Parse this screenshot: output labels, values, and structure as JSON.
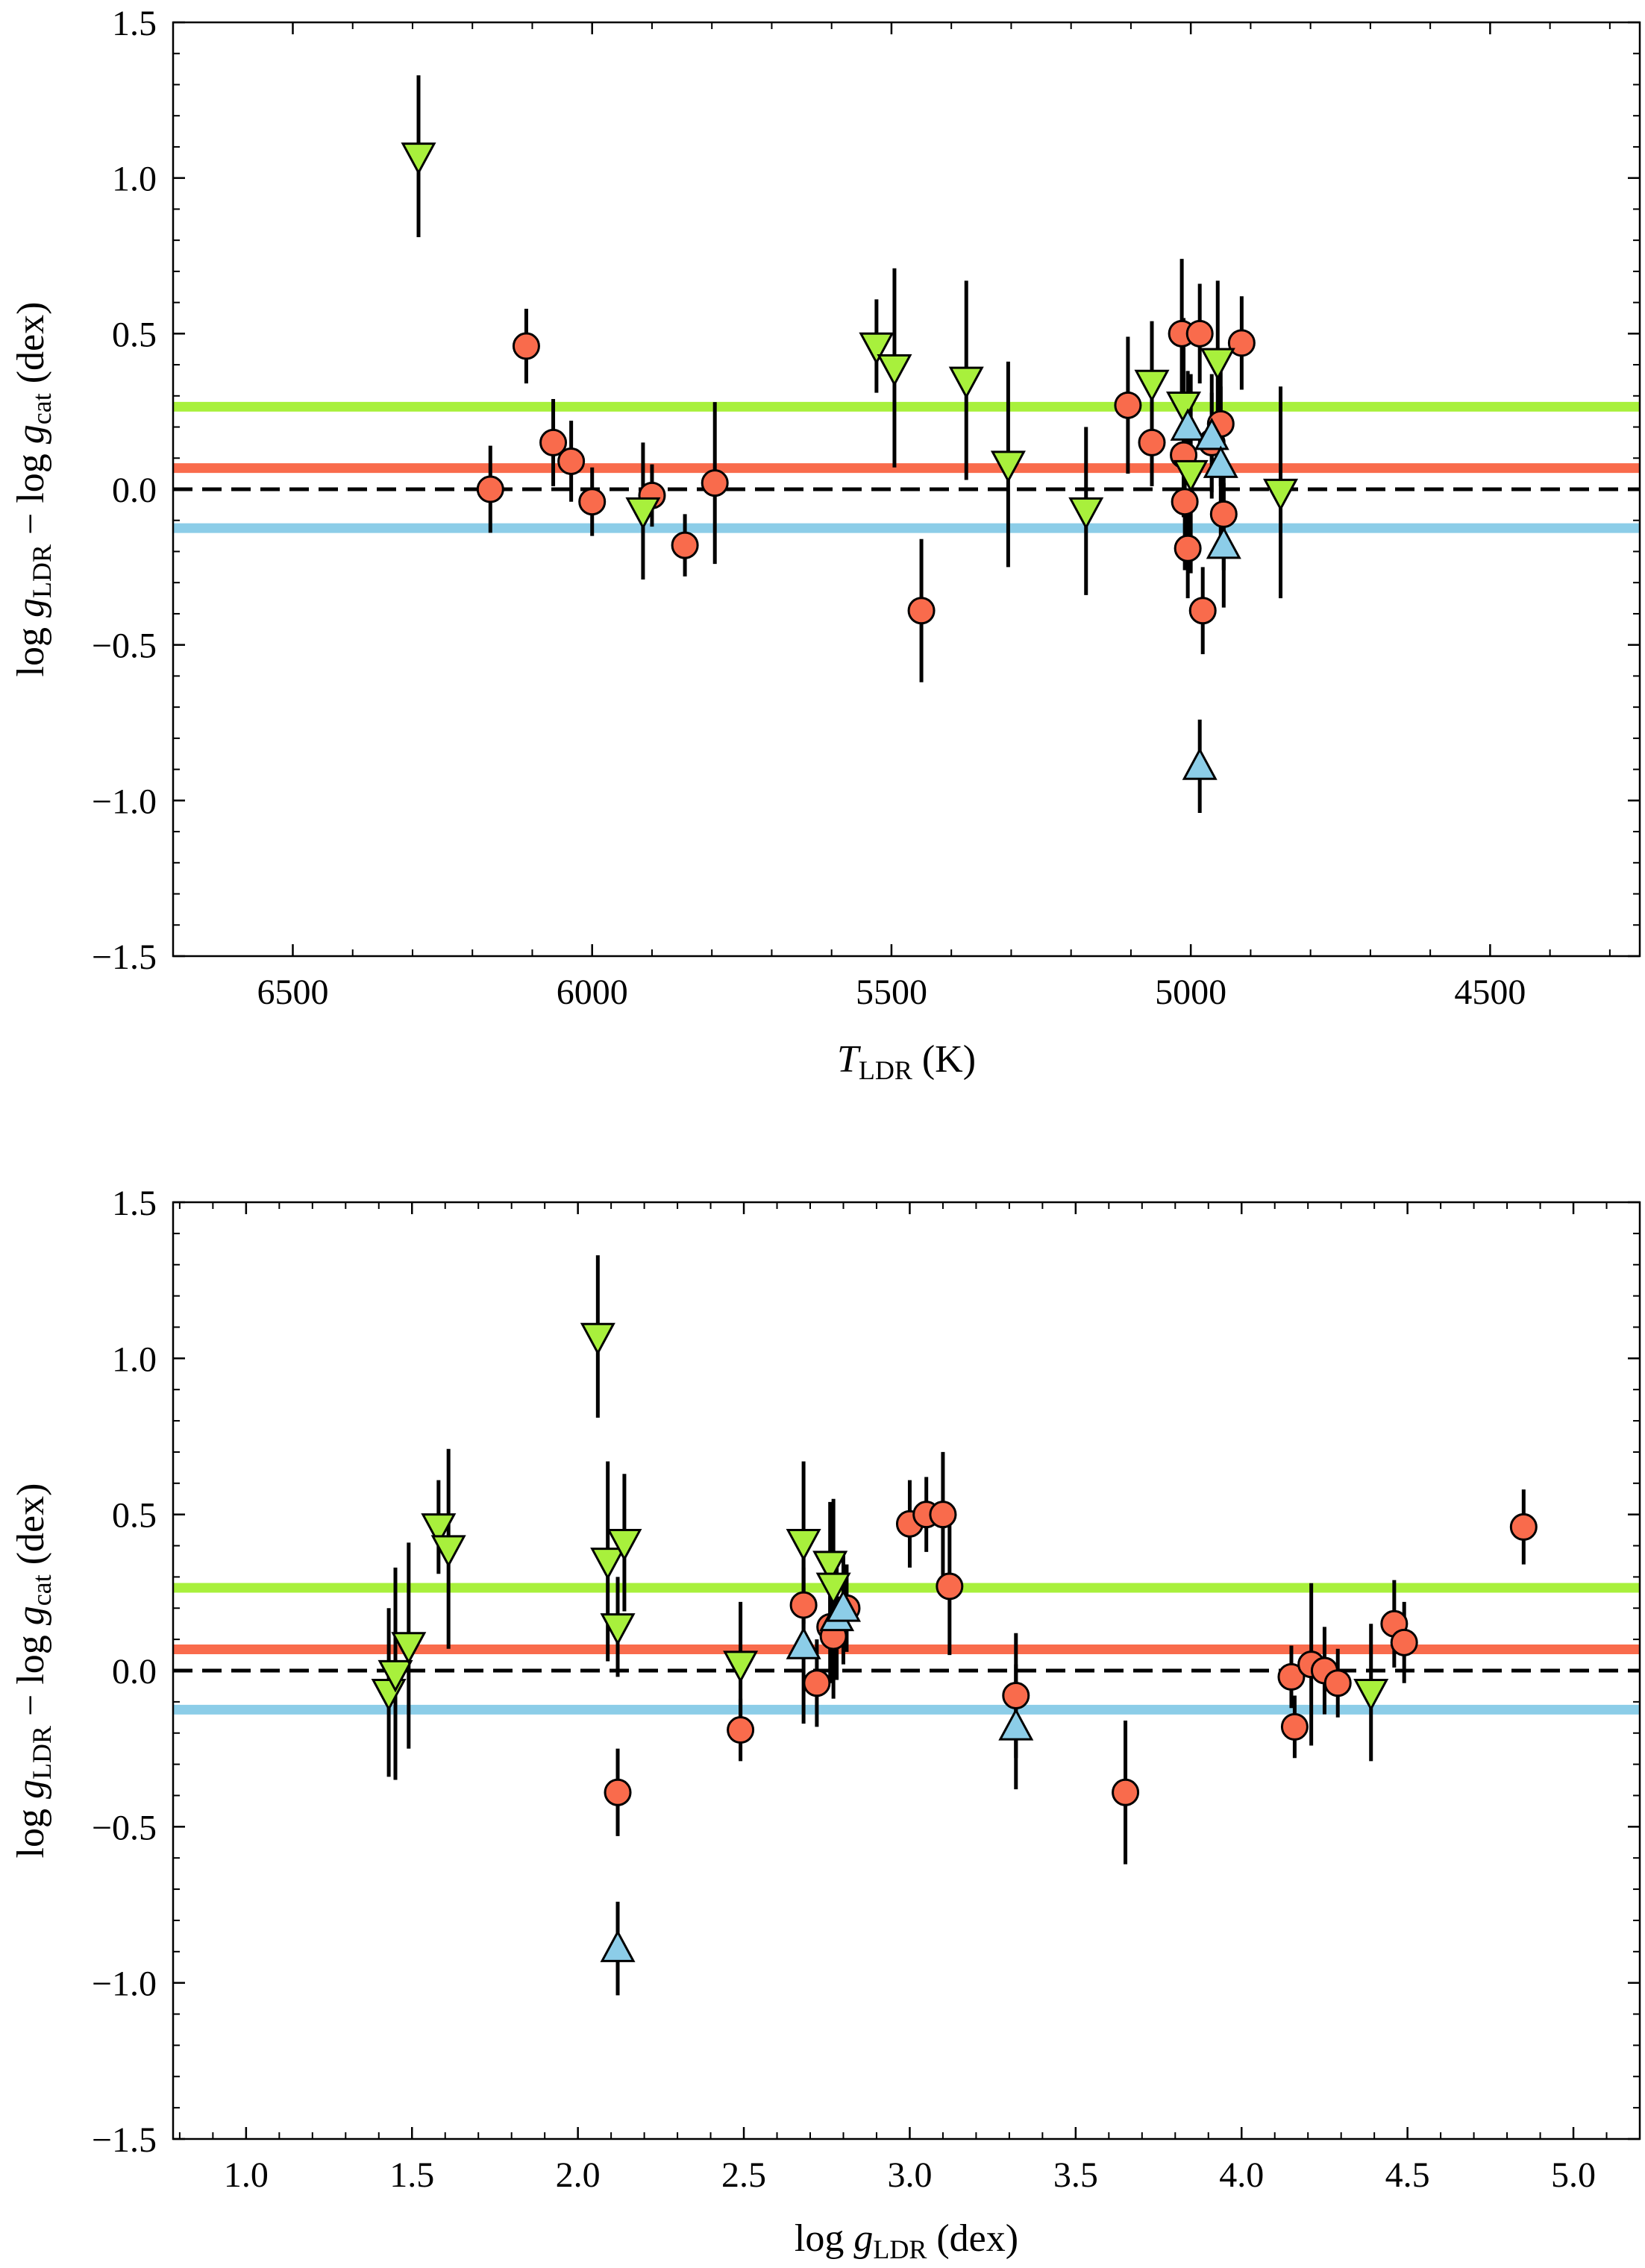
{
  "colors": {
    "red_group": "#f96b4c",
    "green_group": "#a8f03c",
    "blue_group": "#8ccde8",
    "errorbar": "#000000",
    "zero_line": "#000000"
  },
  "chart_data": [
    {
      "type": "scatter",
      "id": "top",
      "xlabel_main": "T",
      "xlabel_sub": "LDR",
      "xlabel_unit": "(K)",
      "ylabel": {
        "p1": "log ",
        "g1": "g",
        "s1": "LDR",
        "p2": " − log ",
        "g2": "g",
        "s2": "cat",
        "unit": " (dex)"
      },
      "xlim": [
        6700,
        4250
      ],
      "ylim": [
        -1.5,
        1.5
      ],
      "xticks": [
        "6500",
        "6000",
        "5500",
        "5000",
        "4500"
      ],
      "xtick_values": [
        6500,
        6000,
        5500,
        5000,
        4500
      ],
      "xminor": [
        6400,
        6300,
        6200,
        6100,
        5900,
        5800,
        5700,
        5600,
        5400,
        5300,
        5200,
        5100,
        4900,
        4800,
        4700,
        4600,
        4400,
        4300
      ],
      "yticks": [
        "1.5",
        "1.0",
        "0.5",
        "0.0",
        "−0.5",
        "−1.0",
        "−1.5"
      ],
      "ytick_values": [
        1.5,
        1.0,
        0.5,
        0.0,
        -0.5,
        -1.0,
        -1.5
      ],
      "hlines": [
        {
          "name": "green-mean",
          "y": 0.265,
          "color": "#a8f03c"
        },
        {
          "name": "red-mean",
          "y": 0.068,
          "color": "#f96b4c"
        },
        {
          "name": "blue-mean",
          "y": -0.125,
          "color": "#8ccde8"
        }
      ],
      "series": [
        {
          "name": "red-circles",
          "marker": "circle",
          "color": "#f96b4c",
          "points": [
            [
              6170,
              0.0,
              0.14
            ],
            [
              6110,
              0.46,
              0.12
            ],
            [
              6065,
              0.15,
              0.14
            ],
            [
              6035,
              0.09,
              0.13
            ],
            [
              6000,
              -0.04,
              0.11
            ],
            [
              5900,
              -0.02,
              0.1
            ],
            [
              5845,
              -0.18,
              0.1
            ],
            [
              5795,
              0.02,
              0.26
            ],
            [
              5450,
              -0.39,
              0.23
            ],
            [
              5105,
              0.27,
              0.22
            ],
            [
              5065,
              0.15,
              0.14
            ],
            [
              5015,
              0.5,
              0.24
            ],
            [
              5012,
              0.11,
              0.2
            ],
            [
              5010,
              -0.04,
              0.22
            ],
            [
              5005,
              -0.19,
              0.16
            ],
            [
              4985,
              0.5,
              0.16
            ],
            [
              4980,
              -0.39,
              0.14
            ],
            [
              4965,
              0.15,
              0.16
            ],
            [
              4950,
              0.21,
              0.2
            ],
            [
              4945,
              -0.08,
              0.18
            ],
            [
              4915,
              0.47,
              0.15
            ]
          ]
        },
        {
          "name": "green-down-triangles",
          "marker": "triangle-down",
          "color": "#a8f03c",
          "points": [
            [
              6290,
              1.07,
              0.26
            ],
            [
              5915,
              -0.07,
              0.22
            ],
            [
              5525,
              0.46,
              0.15
            ],
            [
              5495,
              0.39,
              0.32
            ],
            [
              5375,
              0.35,
              0.32
            ],
            [
              5305,
              0.08,
              0.33
            ],
            [
              5175,
              -0.07,
              0.27
            ],
            [
              5065,
              0.34,
              0.2
            ],
            [
              5012,
              0.27,
              0.28
            ],
            [
              5000,
              0.05,
              0.32
            ],
            [
              4955,
              0.41,
              0.26
            ],
            [
              4850,
              -0.01,
              0.34
            ]
          ]
        },
        {
          "name": "blue-up-triangles",
          "marker": "triangle-up",
          "color": "#8ccde8",
          "points": [
            [
              5005,
              0.2,
              0.18
            ],
            [
              4985,
              -0.89,
              0.15
            ],
            [
              4965,
              0.17,
              0.2
            ],
            [
              4950,
              0.08,
              0.25
            ],
            [
              4945,
              -0.18,
              0.2
            ]
          ]
        }
      ]
    },
    {
      "type": "scatter",
      "id": "bottom",
      "xlabel_main": "log g",
      "xlabel_sub": "LDR",
      "xlabel_unit": "(dex)",
      "ylabel": {
        "p1": "log ",
        "g1": "g",
        "s1": "LDR",
        "p2": " − log ",
        "g2": "g",
        "s2": "cat",
        "unit": " (dex)"
      },
      "xlim": [
        0.78,
        5.2
      ],
      "ylim": [
        -1.5,
        1.5
      ],
      "xticks": [
        "1.0",
        "1.5",
        "2.0",
        "2.5",
        "3.0",
        "3.5",
        "4.0",
        "4.5",
        "5.0"
      ],
      "xtick_values": [
        1.0,
        1.5,
        2.0,
        2.5,
        3.0,
        3.5,
        4.0,
        4.5,
        5.0
      ],
      "xminor": [
        0.8,
        0.9,
        1.1,
        1.2,
        1.3,
        1.4,
        1.6,
        1.7,
        1.8,
        1.9,
        2.1,
        2.2,
        2.3,
        2.4,
        2.6,
        2.7,
        2.8,
        2.9,
        3.1,
        3.2,
        3.3,
        3.4,
        3.6,
        3.7,
        3.8,
        3.9,
        4.1,
        4.2,
        4.3,
        4.4,
        4.6,
        4.7,
        4.8,
        4.9,
        5.1,
        5.2
      ],
      "yticks": [
        "1.5",
        "1.0",
        "0.5",
        "0.0",
        "−0.5",
        "−1.0",
        "−1.5"
      ],
      "ytick_values": [
        1.5,
        1.0,
        0.5,
        0.0,
        -0.5,
        -1.0,
        -1.5
      ],
      "hlines": [
        {
          "name": "green-mean",
          "y": 0.265,
          "color": "#a8f03c"
        },
        {
          "name": "red-mean",
          "y": 0.068,
          "color": "#f96b4c"
        },
        {
          "name": "blue-mean",
          "y": -0.125,
          "color": "#8ccde8"
        }
      ],
      "series": [
        {
          "name": "red-circles",
          "marker": "circle",
          "color": "#f96b4c",
          "points": [
            [
              2.12,
              -0.39,
              0.14
            ],
            [
              2.49,
              -0.19,
              0.1
            ],
            [
              2.68,
              0.21,
              0.16
            ],
            [
              2.72,
              -0.04,
              0.14
            ],
            [
              2.76,
              0.14,
              0.18
            ],
            [
              2.77,
              0.11,
              0.2
            ],
            [
              2.81,
              0.2,
              0.14
            ],
            [
              3.0,
              0.47,
              0.14
            ],
            [
              3.05,
              0.5,
              0.12
            ],
            [
              3.1,
              0.5,
              0.2
            ],
            [
              3.12,
              0.27,
              0.22
            ],
            [
              3.32,
              -0.08,
              0.2
            ],
            [
              3.65,
              -0.39,
              0.23
            ],
            [
              4.15,
              -0.02,
              0.1
            ],
            [
              4.16,
              -0.18,
              0.1
            ],
            [
              4.21,
              0.02,
              0.26
            ],
            [
              4.25,
              0.0,
              0.14
            ],
            [
              4.29,
              -0.04,
              0.11
            ],
            [
              4.46,
              0.15,
              0.14
            ],
            [
              4.49,
              0.09,
              0.13
            ],
            [
              4.85,
              0.46,
              0.12
            ]
          ]
        },
        {
          "name": "green-down-triangles",
          "marker": "triangle-down",
          "color": "#a8f03c",
          "points": [
            [
              1.43,
              -0.07,
              0.27
            ],
            [
              1.45,
              -0.01,
              0.34
            ],
            [
              1.49,
              0.08,
              0.33
            ],
            [
              1.58,
              0.46,
              0.15
            ],
            [
              1.61,
              0.39,
              0.32
            ],
            [
              2.06,
              1.07,
              0.26
            ],
            [
              2.09,
              0.35,
              0.32
            ],
            [
              2.12,
              0.14,
              0.16
            ],
            [
              2.14,
              0.41,
              0.22
            ],
            [
              2.49,
              0.02,
              0.2
            ],
            [
              2.68,
              0.41,
              0.26
            ],
            [
              2.76,
              0.34,
              0.2
            ],
            [
              2.77,
              0.27,
              0.28
            ],
            [
              4.39,
              -0.07,
              0.22
            ]
          ]
        },
        {
          "name": "blue-up-triangles",
          "marker": "triangle-up",
          "color": "#8ccde8",
          "points": [
            [
              2.12,
              -0.89,
              0.15
            ],
            [
              2.68,
              0.08,
              0.25
            ],
            [
              2.78,
              0.17,
              0.2
            ],
            [
              2.8,
              0.2,
              0.18
            ],
            [
              3.32,
              -0.18,
              0.2
            ]
          ]
        }
      ]
    }
  ]
}
